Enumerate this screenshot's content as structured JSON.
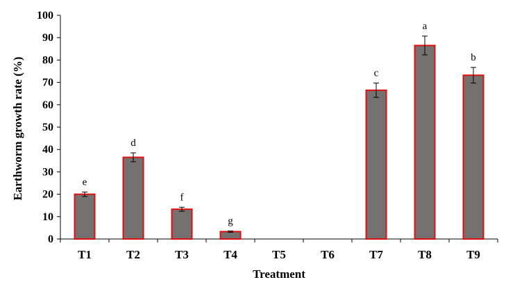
{
  "chart_data": {
    "type": "bar",
    "title": "",
    "xlabel": "Treatment",
    "ylabel": "Earthworm growth rate (%)",
    "ylim": [
      0,
      100
    ],
    "yticks": [
      "0",
      "10",
      "20",
      "30",
      "40",
      "50",
      "60",
      "70",
      "80",
      "90",
      "100"
    ],
    "categories": [
      "T1",
      "T2",
      "T3",
      "T4",
      "T5",
      "T6",
      "T7",
      "T8",
      "T9"
    ],
    "values": [
      20,
      36.5,
      13.3,
      3.3,
      0,
      0,
      66.5,
      86.5,
      73.2
    ],
    "errors": [
      1.0,
      2.0,
      0.9,
      0.3,
      0,
      0,
      3.2,
      4.2,
      3.5
    ],
    "letters": [
      "e",
      "d",
      "f",
      "g",
      "",
      "",
      "c",
      "a",
      "b"
    ],
    "letter_colors": [
      "#000000",
      "#000000",
      "#000000",
      "#000000",
      "#000000",
      "#000000",
      "#000000",
      "#000000",
      "#1a5c1a"
    ],
    "grid": false,
    "legend": "none",
    "colors": {
      "bar_fill": "#757171",
      "bar_stroke": "#e01010",
      "axis": "#000000"
    }
  }
}
